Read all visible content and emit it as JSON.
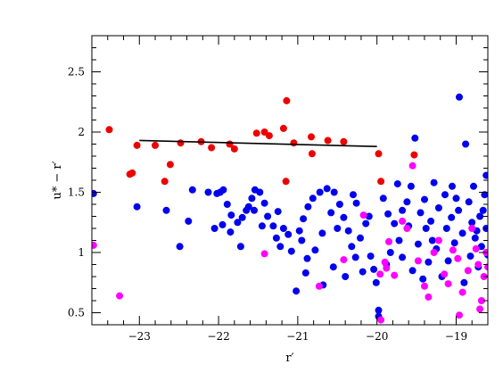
{
  "chart_data": {
    "type": "scatter",
    "title": "",
    "xlabel": "r′",
    "ylabel": "u* − r′",
    "xlim": [
      -23.6,
      -18.6
    ],
    "ylim": [
      0.4,
      2.8
    ],
    "xticks": [
      -23,
      -22,
      -21,
      -20,
      -19
    ],
    "xtick_labels": [
      "−23",
      "−22",
      "−21",
      "−20",
      "−19"
    ],
    "yticks": [
      0.5,
      1,
      1.5,
      2,
      2.5
    ],
    "ytick_labels": [
      "0.5",
      "1",
      "1.5",
      "2",
      "2.5"
    ],
    "grid": false,
    "colors": {
      "red": "#ee0000",
      "blue": "#0000ee",
      "magenta": "#ff00ff",
      "line": "#000000"
    },
    "fit_line": {
      "x": [
        -23.0,
        -20.0
      ],
      "y": [
        1.93,
        1.88
      ]
    },
    "series": [
      {
        "color": "red",
        "points": [
          [
            -23.38,
            2.02
          ],
          [
            -23.03,
            1.89
          ],
          [
            -23.12,
            1.65
          ],
          [
            -23.09,
            1.66
          ],
          [
            -22.8,
            1.89
          ],
          [
            -22.68,
            1.59
          ],
          [
            -22.61,
            1.73
          ],
          [
            -22.48,
            1.91
          ],
          [
            -22.22,
            1.92
          ],
          [
            -22.09,
            1.87
          ],
          [
            -21.86,
            1.9
          ],
          [
            -21.8,
            1.86
          ],
          [
            -21.52,
            1.99
          ],
          [
            -21.42,
            2.0
          ],
          [
            -21.36,
            1.97
          ],
          [
            -21.18,
            2.03
          ],
          [
            -21.14,
            2.26
          ],
          [
            -21.05,
            1.91
          ],
          [
            -20.83,
            1.96
          ],
          [
            -20.82,
            1.82
          ],
          [
            -20.62,
            1.93
          ],
          [
            -20.42,
            1.92
          ],
          [
            -19.98,
            1.82
          ],
          [
            -19.95,
            1.59
          ],
          [
            -21.15,
            1.59
          ],
          [
            -19.53,
            1.81
          ]
        ]
      },
      {
        "color": "blue",
        "points": [
          [
            -23.58,
            1.49
          ],
          [
            -23.03,
            1.38
          ],
          [
            -22.49,
            1.05
          ],
          [
            -22.66,
            1.35
          ],
          [
            -22.38,
            1.26
          ],
          [
            -22.33,
            1.52
          ],
          [
            -22.13,
            1.5
          ],
          [
            -22.02,
            1.49
          ],
          [
            -21.98,
            1.5
          ],
          [
            -21.94,
            1.52
          ],
          [
            -21.89,
            1.4
          ],
          [
            -21.84,
            1.31
          ],
          [
            -21.76,
            1.25
          ],
          [
            -21.7,
            1.29
          ],
          [
            -21.65,
            1.35
          ],
          [
            -21.62,
            1.38
          ],
          [
            -21.58,
            1.45
          ],
          [
            -21.54,
            1.52
          ],
          [
            -21.48,
            1.5
          ],
          [
            -21.42,
            1.41
          ],
          [
            -21.38,
            1.3
          ],
          [
            -21.31,
            1.22
          ],
          [
            -21.27,
            1.12
          ],
          [
            -21.22,
            1.05
          ],
          [
            -21.18,
            1.2
          ],
          [
            -21.12,
            1.15
          ],
          [
            -21.08,
            1.01
          ],
          [
            -20.98,
            1.18
          ],
          [
            -20.93,
            1.28
          ],
          [
            -20.87,
            1.38
          ],
          [
            -20.81,
            1.45
          ],
          [
            -20.72,
            1.5
          ],
          [
            -20.63,
            1.53
          ],
          [
            -20.54,
            1.5
          ],
          [
            -20.47,
            1.4
          ],
          [
            -20.42,
            1.29
          ],
          [
            -20.36,
            1.18
          ],
          [
            -20.32,
            1.05
          ],
          [
            -20.27,
            0.96
          ],
          [
            -20.21,
            1.12
          ],
          [
            -20.14,
            1.24
          ],
          [
            -20.08,
            0.97
          ],
          [
            -20.04,
            0.86
          ],
          [
            -20.01,
            0.75
          ],
          [
            -19.98,
            0.52
          ],
          [
            -19.92,
            1.45
          ],
          [
            -19.86,
            1.32
          ],
          [
            -19.78,
            1.24
          ],
          [
            -19.72,
            1.1
          ],
          [
            -19.68,
            0.96
          ],
          [
            -19.62,
            1.42
          ],
          [
            -19.57,
            1.55
          ],
          [
            -19.52,
            1.95
          ],
          [
            -19.45,
            1.33
          ],
          [
            -19.38,
            1.2
          ],
          [
            -19.3,
            1.1
          ],
          [
            -19.22,
            1.37
          ],
          [
            -19.14,
            1.48
          ],
          [
            -19.06,
            1.29
          ],
          [
            -18.96,
            2.29
          ],
          [
            -18.92,
            1.16
          ],
          [
            -18.88,
            1.9
          ],
          [
            -18.84,
            1.42
          ],
          [
            -18.8,
            1.25
          ],
          [
            -18.74,
            1.18
          ],
          [
            -18.68,
            1.05
          ],
          [
            -18.62,
            1.64
          ],
          [
            -18.6,
            0.98
          ],
          [
            -19.28,
            1.58
          ],
          [
            -19.35,
            0.92
          ],
          [
            -19.18,
            0.8
          ],
          [
            -19.02,
            1.08
          ],
          [
            -18.78,
            1.55
          ],
          [
            -18.7,
            1.3
          ],
          [
            -20.55,
            0.88
          ],
          [
            -20.68,
            0.73
          ],
          [
            -20.78,
            1.02
          ],
          [
            -20.88,
            0.95
          ],
          [
            -21.02,
            0.68
          ],
          [
            -21.72,
            1.05
          ],
          [
            -21.85,
            1.17
          ],
          [
            -22.05,
            1.2
          ],
          [
            -21.95,
            1.23
          ],
          [
            -21.55,
            1.35
          ],
          [
            -21.45,
            1.22
          ],
          [
            -21.25,
            1.34
          ],
          [
            -20.69,
            1.16
          ],
          [
            -20.26,
            1.41
          ],
          [
            -20.18,
            0.84
          ],
          [
            -19.83,
            1.0
          ],
          [
            -19.74,
            1.57
          ],
          [
            -19.48,
            1.07
          ],
          [
            -19.4,
            1.44
          ],
          [
            -19.12,
            1.2
          ],
          [
            -19.0,
            1.45
          ],
          [
            -18.97,
            1.35
          ],
          [
            -18.82,
            0.97
          ],
          [
            -18.76,
            1.12
          ],
          [
            -18.64,
            1.48
          ],
          [
            -20.95,
            1.1
          ],
          [
            -20.9,
            0.83
          ],
          [
            -20.5,
            1.2
          ],
          [
            -20.4,
            0.8
          ],
          [
            -20.1,
            1.3
          ],
          [
            -19.88,
            0.9
          ],
          [
            -19.6,
            1.22
          ],
          [
            -19.55,
            0.85
          ],
          [
            -19.42,
            0.78
          ],
          [
            -19.25,
            1.03
          ],
          [
            -19.1,
            0.93
          ],
          [
            -18.9,
            0.75
          ],
          [
            -18.72,
            0.88
          ],
          [
            -18.66,
            1.35
          ],
          [
            -18.62,
            1.2
          ],
          [
            -19.98,
            0.47
          ],
          [
            -19.32,
            1.26
          ],
          [
            -19.05,
            1.55
          ],
          [
            -19.68,
            1.35
          ],
          [
            -20.58,
            1.33
          ],
          [
            -20.3,
            1.48
          ]
        ]
      },
      {
        "color": "magenta",
        "points": [
          [
            -23.58,
            1.06
          ],
          [
            -23.25,
            0.64
          ],
          [
            -21.42,
            0.99
          ],
          [
            -20.73,
            0.72
          ],
          [
            -20.42,
            0.94
          ],
          [
            -20.17,
            1.31
          ],
          [
            -19.96,
            0.82
          ],
          [
            -19.9,
            0.92
          ],
          [
            -19.85,
            1.09
          ],
          [
            -19.78,
            0.81
          ],
          [
            -19.68,
            1.26
          ],
          [
            -19.62,
            1.2
          ],
          [
            -19.55,
            1.72
          ],
          [
            -19.48,
            0.93
          ],
          [
            -19.4,
            0.72
          ],
          [
            -19.35,
            0.63
          ],
          [
            -19.28,
            1.0
          ],
          [
            -19.22,
            1.1
          ],
          [
            -19.15,
            0.82
          ],
          [
            -19.1,
            0.74
          ],
          [
            -19.04,
            1.02
          ],
          [
            -18.98,
            0.95
          ],
          [
            -18.92,
            0.67
          ],
          [
            -18.85,
            0.85
          ],
          [
            -18.8,
            1.2
          ],
          [
            -18.75,
            1.03
          ],
          [
            -18.72,
            0.9
          ],
          [
            -18.68,
            0.6
          ],
          [
            -18.65,
            0.8
          ],
          [
            -18.62,
            1.0
          ],
          [
            -18.6,
            0.88
          ],
          [
            -18.96,
            0.48
          ],
          [
            -19.95,
            0.44
          ],
          [
            -18.7,
            0.53
          ],
          [
            -19.88,
            0.87
          ]
        ]
      }
    ]
  }
}
